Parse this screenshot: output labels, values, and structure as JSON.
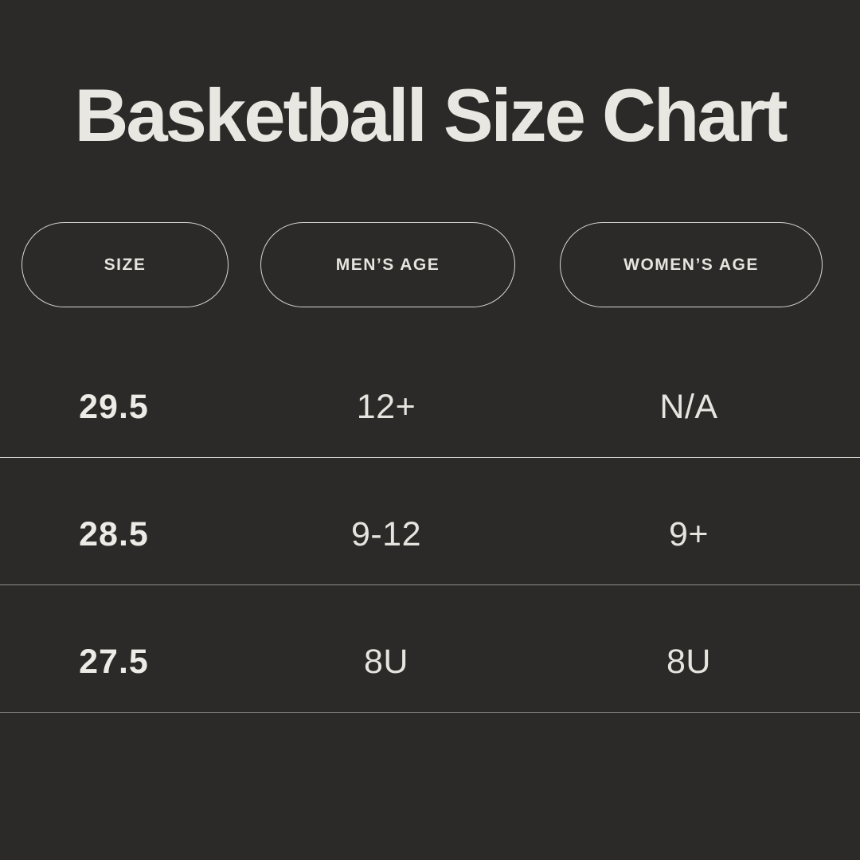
{
  "title": "Basketball Size Chart",
  "colors": {
    "background": "#2b2a28",
    "text": "#e9e7e1",
    "pill_border": "#d9d7d1",
    "divider_top": "#d6d4ce",
    "divider_lower": "#8f8d89"
  },
  "columns": [
    {
      "label": "SIZE"
    },
    {
      "label": "MEN’S AGE"
    },
    {
      "label": "WOMEN’S AGE"
    }
  ],
  "rows": [
    {
      "size": "29.5",
      "mens_age": "12+",
      "womens_age": "N/A"
    },
    {
      "size": "28.5",
      "mens_age": "9-12",
      "womens_age": "9+"
    },
    {
      "size": "27.5",
      "mens_age": "8U",
      "womens_age": "8U"
    }
  ],
  "chart_data": {
    "type": "table",
    "title": "Basketball Size Chart",
    "columns": [
      "SIZE",
      "MEN’S AGE",
      "WOMEN’S AGE"
    ],
    "rows": [
      [
        "29.5",
        "12+",
        "N/A"
      ],
      [
        "28.5",
        "9-12",
        "9+"
      ],
      [
        "27.5",
        "8U",
        "8U"
      ]
    ]
  }
}
